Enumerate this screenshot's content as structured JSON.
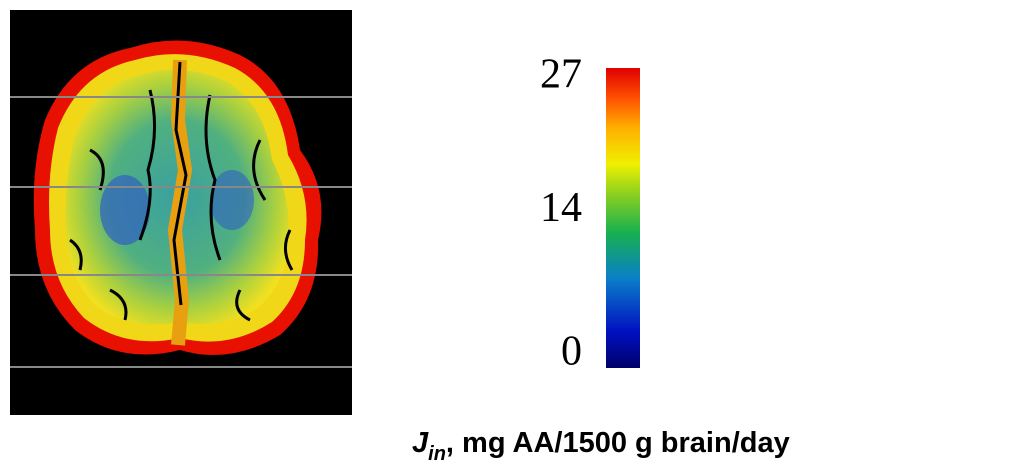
{
  "colorbar": {
    "lim": [
      0,
      27
    ],
    "ticks": [
      0,
      14,
      27
    ],
    "label": {
      "symbol": "J",
      "subscript": "in",
      "text": ", mg AA/1500 g brain/day"
    }
  }
}
